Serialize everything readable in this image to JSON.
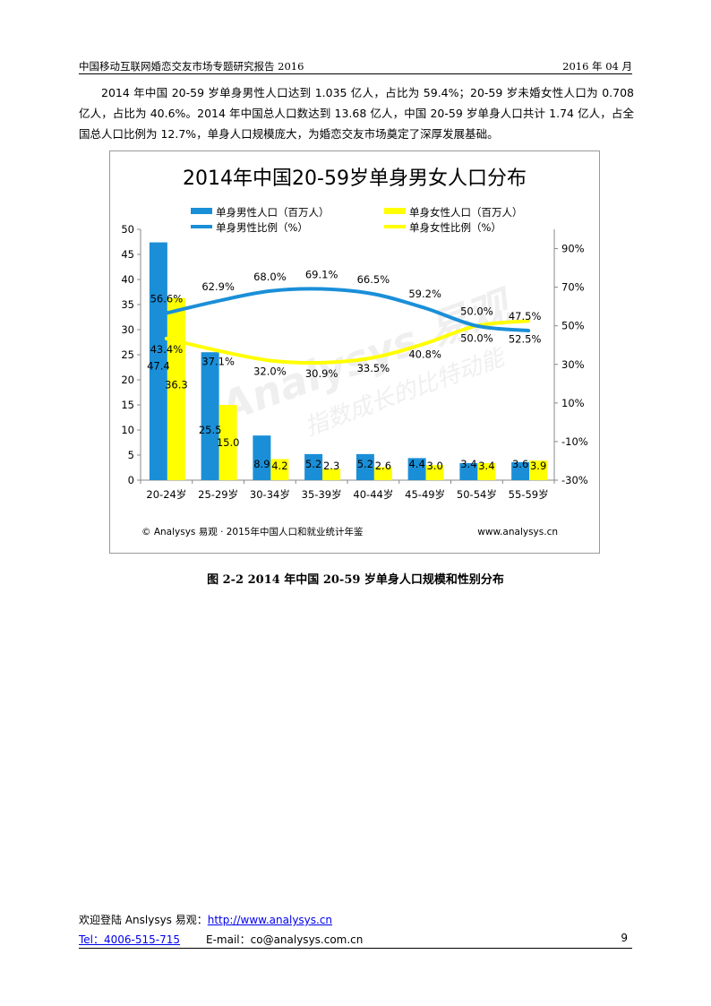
{
  "header": {
    "left": "中国移动互联网婚恋交友市场专题研究报告 2016",
    "right": "2016 年 04 月"
  },
  "paragraph": "2014 年中国 20-59 岁单身男性人口达到 1.035 亿人，占比为 59.4%；20-59 岁未婚女性人口为 0.708 亿人，占比为 40.6%。2014 年中国总人口数达到 13.68 亿人，中国 20-59 岁单身人口共计 1.74 亿人，占全国总人口比例为 12.7%，单身人口规模庞大，为婚恋交友市场奠定了深厚发展基础。",
  "chart_data": {
    "type": "bar",
    "title": "2014年中国20-59岁单身男女人口分布",
    "categories": [
      "20-24岁",
      "25-29岁",
      "30-34岁",
      "35-39岁",
      "40-44岁",
      "45-49岁",
      "50-54岁",
      "55-59岁"
    ],
    "series": [
      {
        "name": "单身男性人口（百万人）",
        "type": "bar",
        "axis": "left",
        "color": "#1a8fd8",
        "values": [
          47.4,
          25.5,
          8.9,
          5.2,
          5.2,
          4.4,
          3.4,
          3.6
        ]
      },
      {
        "name": "单身女性人口（百万人）",
        "type": "bar",
        "axis": "left",
        "color": "#ffff00",
        "values": [
          36.3,
          15.0,
          4.2,
          2.3,
          2.6,
          3.0,
          3.4,
          3.9
        ]
      },
      {
        "name": "单身男性比例（%）",
        "type": "line",
        "axis": "right",
        "color": "#1a8fd8",
        "values": [
          56.6,
          62.9,
          68.0,
          69.1,
          66.5,
          59.2,
          50.0,
          47.5
        ]
      },
      {
        "name": "单身女性比例（%）",
        "type": "line",
        "axis": "right",
        "color": "#ffff00",
        "values": [
          43.4,
          37.1,
          32.0,
          30.9,
          33.5,
          40.8,
          50.0,
          52.5
        ]
      }
    ],
    "ylim": [
      0,
      50
    ],
    "yticks": [
      "0",
      "5",
      "10",
      "15",
      "20",
      "25",
      "30",
      "35",
      "40",
      "45",
      "50"
    ],
    "y2lim": [
      -30,
      100
    ],
    "y2ticks": [
      "-30%",
      "-10%",
      "10%",
      "30%",
      "50%",
      "70%",
      "90%"
    ],
    "legend_position": "top",
    "source": "© Analysys 易观 · 2015年中国人口和就业统计年鉴",
    "site": "www.analysys.cn",
    "watermark": "Analysys 易观 指数成长的比特动能"
  },
  "caption": "图 2-2 2014 年中国 20-59 岁单身人口规模和性别分布",
  "footer": {
    "welcome": "欢迎登陆 Anslysys 易观：",
    "url": "http://www.analysys.cn",
    "tel": "Tel：4006-515-715",
    "email": "E-mail：co@analysys.com.cn",
    "page": "9"
  }
}
